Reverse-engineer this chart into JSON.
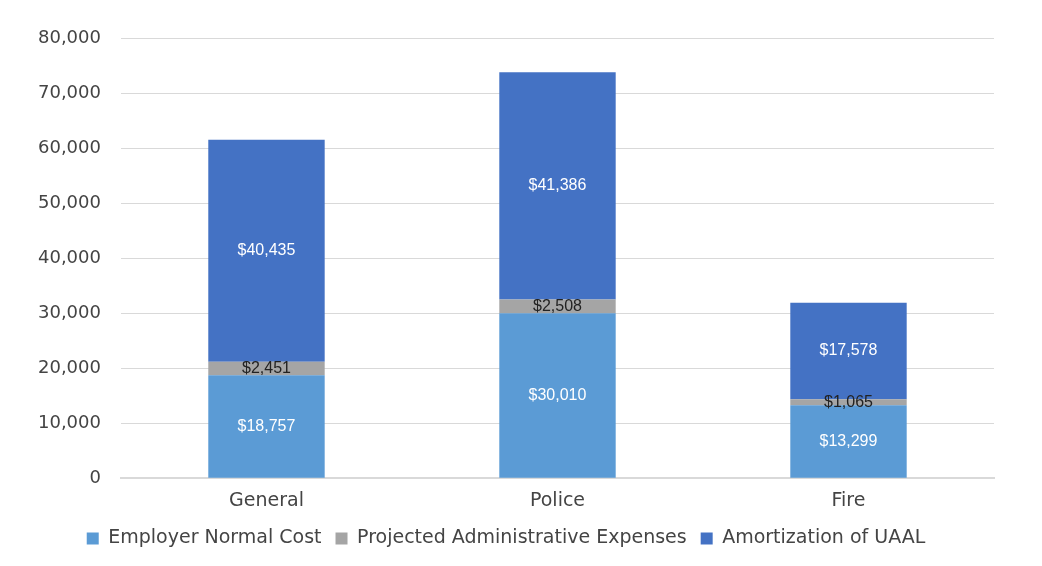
{
  "chart_data": {
    "type": "bar",
    "stacked": true,
    "categories": [
      "General",
      "Police",
      "Fire"
    ],
    "series": [
      {
        "name": "Employer Normal Cost",
        "color": "#5b9bd5",
        "values": [
          18757,
          30010,
          13299
        ],
        "value_labels": [
          "$18,757",
          "$30,010",
          "$13,299"
        ]
      },
      {
        "name": "Projected Administrative Expenses",
        "color": "#a5a5a5",
        "values": [
          2451,
          2508,
          1065
        ],
        "value_labels": [
          "$2,451",
          "$2,508",
          "$1,065"
        ]
      },
      {
        "name": "Amortization of UAAL",
        "color": "#4472c4",
        "values": [
          40435,
          41386,
          17578
        ],
        "value_labels": [
          "$40,435",
          "$41,386",
          "$17,578"
        ]
      }
    ],
    "ylim": [
      0,
      80000
    ],
    "yticks": [
      {
        "value": 0,
        "label": "0"
      },
      {
        "value": 10000,
        "label": "10,000"
      },
      {
        "value": 20000,
        "label": "20,000"
      },
      {
        "value": 30000,
        "label": "30,000"
      },
      {
        "value": 40000,
        "label": "40,000"
      },
      {
        "value": 50000,
        "label": "50,000"
      },
      {
        "value": 60000,
        "label": "60,000"
      },
      {
        "value": 70000,
        "label": "70,000"
      },
      {
        "value": 80000,
        "label": "80,000"
      }
    ],
    "grid": "y",
    "legend": "bottom"
  }
}
